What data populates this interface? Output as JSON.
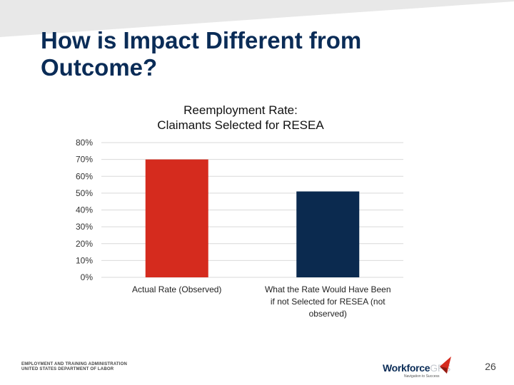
{
  "slide": {
    "title_line1": "How is Impact Different from",
    "title_line2": "Outcome?",
    "page_number": "26"
  },
  "footer": {
    "agency_line1": "EMPLOYMENT AND TRAINING ADMINISTRATION",
    "agency_line2": "UNITED STATES DEPARTMENT OF LABOR",
    "logo_text_a": "Workforce",
    "logo_text_b": "GPS",
    "logo_tagline": "Navigation to Success"
  },
  "colors": {
    "title": "#0a2c57",
    "band": "#e8e8e8",
    "grid": "#d9d9d9"
  },
  "chart_data": {
    "type": "bar",
    "title_line1": "Reemployment Rate:",
    "title_line2": "Claimants Selected for RESEA",
    "categories": [
      [
        "Actual Rate (Observed)"
      ],
      [
        "What the Rate Would Have Been",
        "if not Selected for RESEA (not",
        "observed)"
      ]
    ],
    "values": [
      0.7,
      0.51
    ],
    "colors": [
      "#d52b1e",
      "#0b2a4f"
    ],
    "yticks": [
      "0%",
      "10%",
      "20%",
      "30%",
      "40%",
      "50%",
      "60%",
      "70%",
      "80%"
    ],
    "ylim": [
      0,
      0.8
    ],
    "grid": true
  }
}
